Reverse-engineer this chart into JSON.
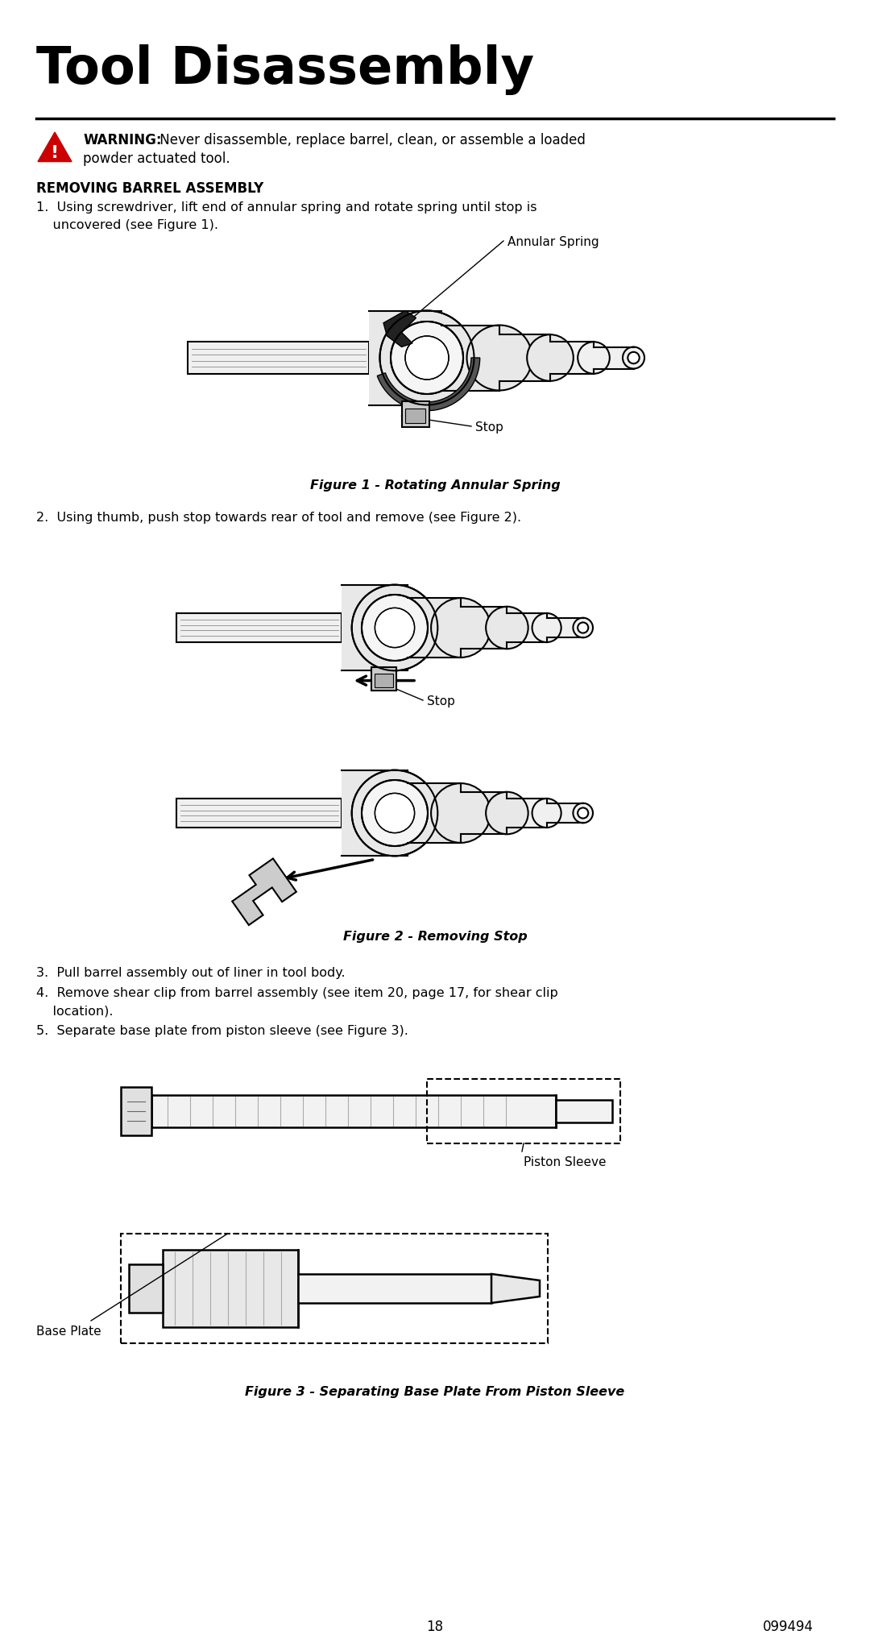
{
  "title": "Tool Disassembly",
  "title_fontsize": 46,
  "warning_bold": "WARNING:",
  "warning_line1": " Never disassemble, replace barrel, clean, or assemble a loaded",
  "warning_line2": "powder actuated tool.",
  "section_heading": "REMOVING BARREL ASSEMBLY",
  "step1_line1": "1.  Using screwdriver, lift end of annular spring and rotate spring until stop is",
  "step1_line2": "    uncovered (see Figure 1).",
  "annular_spring_label": "Annular Spring",
  "stop_label1": "Stop",
  "fig1_caption": "Figure 1 - Rotating Annular Spring",
  "step2": "2.  Using thumb, push stop towards rear of tool and remove (see Figure 2).",
  "stop_label2": "Stop",
  "fig2_caption": "Figure 2 - Removing Stop",
  "step3": "3.  Pull barrel assembly out of liner in tool body.",
  "step4_line1": "4.  Remove shear clip from barrel assembly (see item 20, page 17, for shear clip",
  "step4_line2": "    location).",
  "step5": "5.  Separate base plate from piston sleeve (see Figure 3).",
  "piston_sleeve_label": "Piston Sleeve",
  "base_plate_label": "Base Plate",
  "fig3_caption": "Figure 3 - Separating Base Plate From Piston Sleeve",
  "page_number": "18",
  "doc_number": "099494",
  "bg_color": "#ffffff",
  "text_color": "#000000"
}
